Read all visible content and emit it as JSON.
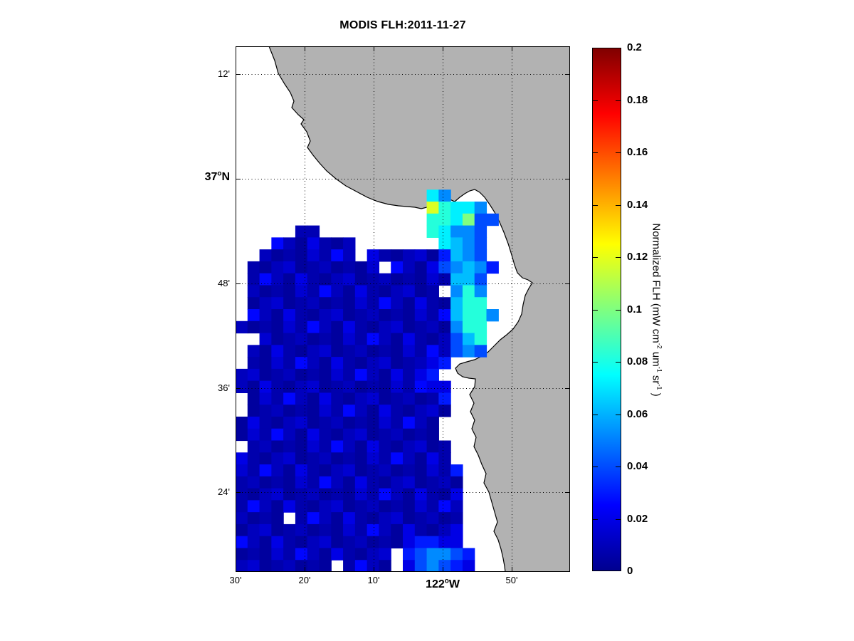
{
  "title": "MODIS FLH:2011-11-27",
  "chart_data": {
    "type": "heatmap",
    "title": "MODIS FLH:2011-11-27",
    "description": "Satellite map of normalized fluorescence line height over the Monterey Bay region; gray = land, white = no data ocean, colored cells = FLH values on jet colormap",
    "x_axis": {
      "ticks": [
        {
          "text": "30'"
        },
        {
          "text": "20'"
        },
        {
          "text": "10'"
        },
        {
          "pre": "122",
          "sup": "o",
          "post": "W",
          "major": true
        },
        {
          "text": "50'"
        }
      ]
    },
    "y_axis": {
      "ticks": [
        {
          "text": "12'"
        },
        {
          "pre": "37",
          "sup": "o",
          "post": "N",
          "major": true
        },
        {
          "text": "48'"
        },
        {
          "text": "36'"
        },
        {
          "text": "24'"
        }
      ]
    },
    "colorbar": {
      "min": 0,
      "max": 0.2,
      "colormap": "jet",
      "tick_labels": [
        "0.2",
        "0.18",
        "0.16",
        "0.14",
        "0.12",
        "0.1",
        "0.08",
        "0.06",
        "0.04",
        "0.02",
        "0"
      ],
      "label_text": "Normalized FLH (mW cm-2 um-1 sr-1 )",
      "label_parts": [
        {
          "t": "Normalized FLH (mW cm"
        },
        {
          "sup": "-2"
        },
        {
          "t": " um"
        },
        {
          "sup": "-1"
        },
        {
          "t": " sr"
        },
        {
          "sup": "-1"
        },
        {
          "t": " )"
        }
      ]
    },
    "map": {
      "land_color": "#b2b2b2",
      "ocean_color": "#ffffff",
      "gridline_style": "dotted black"
    },
    "grid": {
      "ncols": 28,
      "nrows": 44,
      "code_values": {
        ".": null,
        "d": 0.012,
        "2": 0.01,
        "4": 0.02,
        "5": 0.03,
        "6": 0.04,
        "7": 0.052,
        "8": 0.062,
        "c": 0.072,
        "t": 0.082,
        "v": 0.1,
        "g": 0.118
      },
      "note": "d = dark-blue background water (~0.006-0.026, rendered with deterministic noise); codes map to FLH values colored by jet colormap over [0,0.2]",
      "rows": [
        "............................",
        "............................",
        "............................",
        "............................",
        "............................",
        "............................",
        "............................",
        "............................",
        "............................",
        "............................",
        "............................",
        "............................",
        "................c7..........",
        "................gtcc7.......",
        "................ttcv66......",
        ".....22.........tc776.......",
        "...ddddddd.......c876.......",
        "..dddddddd.dddddd5876.......",
        ".ddddddddddd.dddd67875......",
        ".ddddddddddddddddd886.......",
        ".dddddddddddddddd.7t7.......",
        ".ddddddddddddddddd8tt.......",
        ".ddddddddddddddddd8tt7......",
        "dddddddddddddddddd7tt.......",
        "..dddddddddddddddd68t.......",
        ".ddddddddddddddddd676.......",
        ".ddddddddddddddd45..........",
        "ddddddddddddddd45...........",
        "dddddddddddddddd44..........",
        ".dddddddddddddddd5..........",
        ".ddddddddddddddddd..........",
        "ddddddddddddddddd...........",
        "ddddddddddddddddd...........",
        ".ddddddddddddddddd..........",
        "dddddddddddddddddd..........",
        "dddddddddddddddddd5.........",
        "ddddddddddddddddddd.........",
        "dddddddddddddddddd4.........",
        "ddddddddddddddddddd.........",
        "dddd.dddddddddddddd.........",
        "dddddddddddddddddd4.........",
        "dddddddddddddd45544.........",
        "ddddddddddddd.567765........",
        "dddddddd.dddd.467654........"
      ]
    }
  }
}
